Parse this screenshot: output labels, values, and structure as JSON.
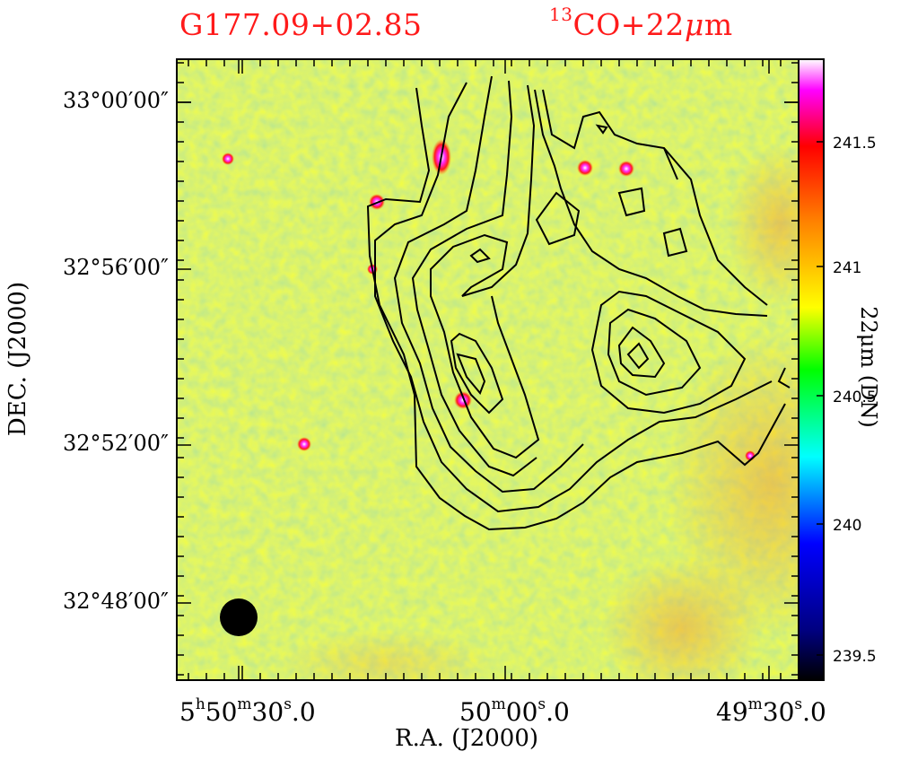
{
  "titles": {
    "source": "G177.09+02.85",
    "tracer_sup": "13",
    "tracer_main": "CO+22",
    "tracer_mu": "μ",
    "tracer_unit": "m"
  },
  "chart_data": {
    "type": "heatmap",
    "image": "22μm intensity map with 13CO integrated intensity contours",
    "xlabel": "R.A. (J2000)",
    "ylabel": "DEC. (J2000)",
    "x_ticks": [
      {
        "label": "5h50m30.0s",
        "h": "5",
        "m": "50",
        "s": "30",
        "f": ".0"
      },
      {
        "label": "50m00.0s",
        "h": "",
        "m": "50",
        "s": "00",
        "f": ".0"
      },
      {
        "label": "49m30.0s",
        "h": "",
        "m": "49",
        "s": "30",
        "f": ".0"
      }
    ],
    "y_ticks": [
      "33°00′00″",
      "32°56′00″",
      "32°52′00″",
      "32°48′00″"
    ],
    "colorbar": {
      "label": "22μm (DN)",
      "ticks": [
        "241.5",
        "241",
        "240.5",
        "240",
        "239.5"
      ],
      "values": [
        241.5,
        241.0,
        240.5,
        240.0,
        239.5
      ],
      "colormap": [
        "#000000",
        "#0000ff",
        "#00ffff",
        "#00ff00",
        "#ffff00",
        "#ff0000",
        "#ff00ff",
        "#ffffff"
      ]
    },
    "background_color": "#c8ec5a",
    "contour_color": "#000000",
    "beam": "filled black circle, lower-left",
    "point_sources": [
      {
        "dec_label": "near 32°57′",
        "color": "#ff2a2a"
      },
      {
        "dec_label": "near 32°53′",
        "color": "#ff2a2a"
      }
    ]
  }
}
